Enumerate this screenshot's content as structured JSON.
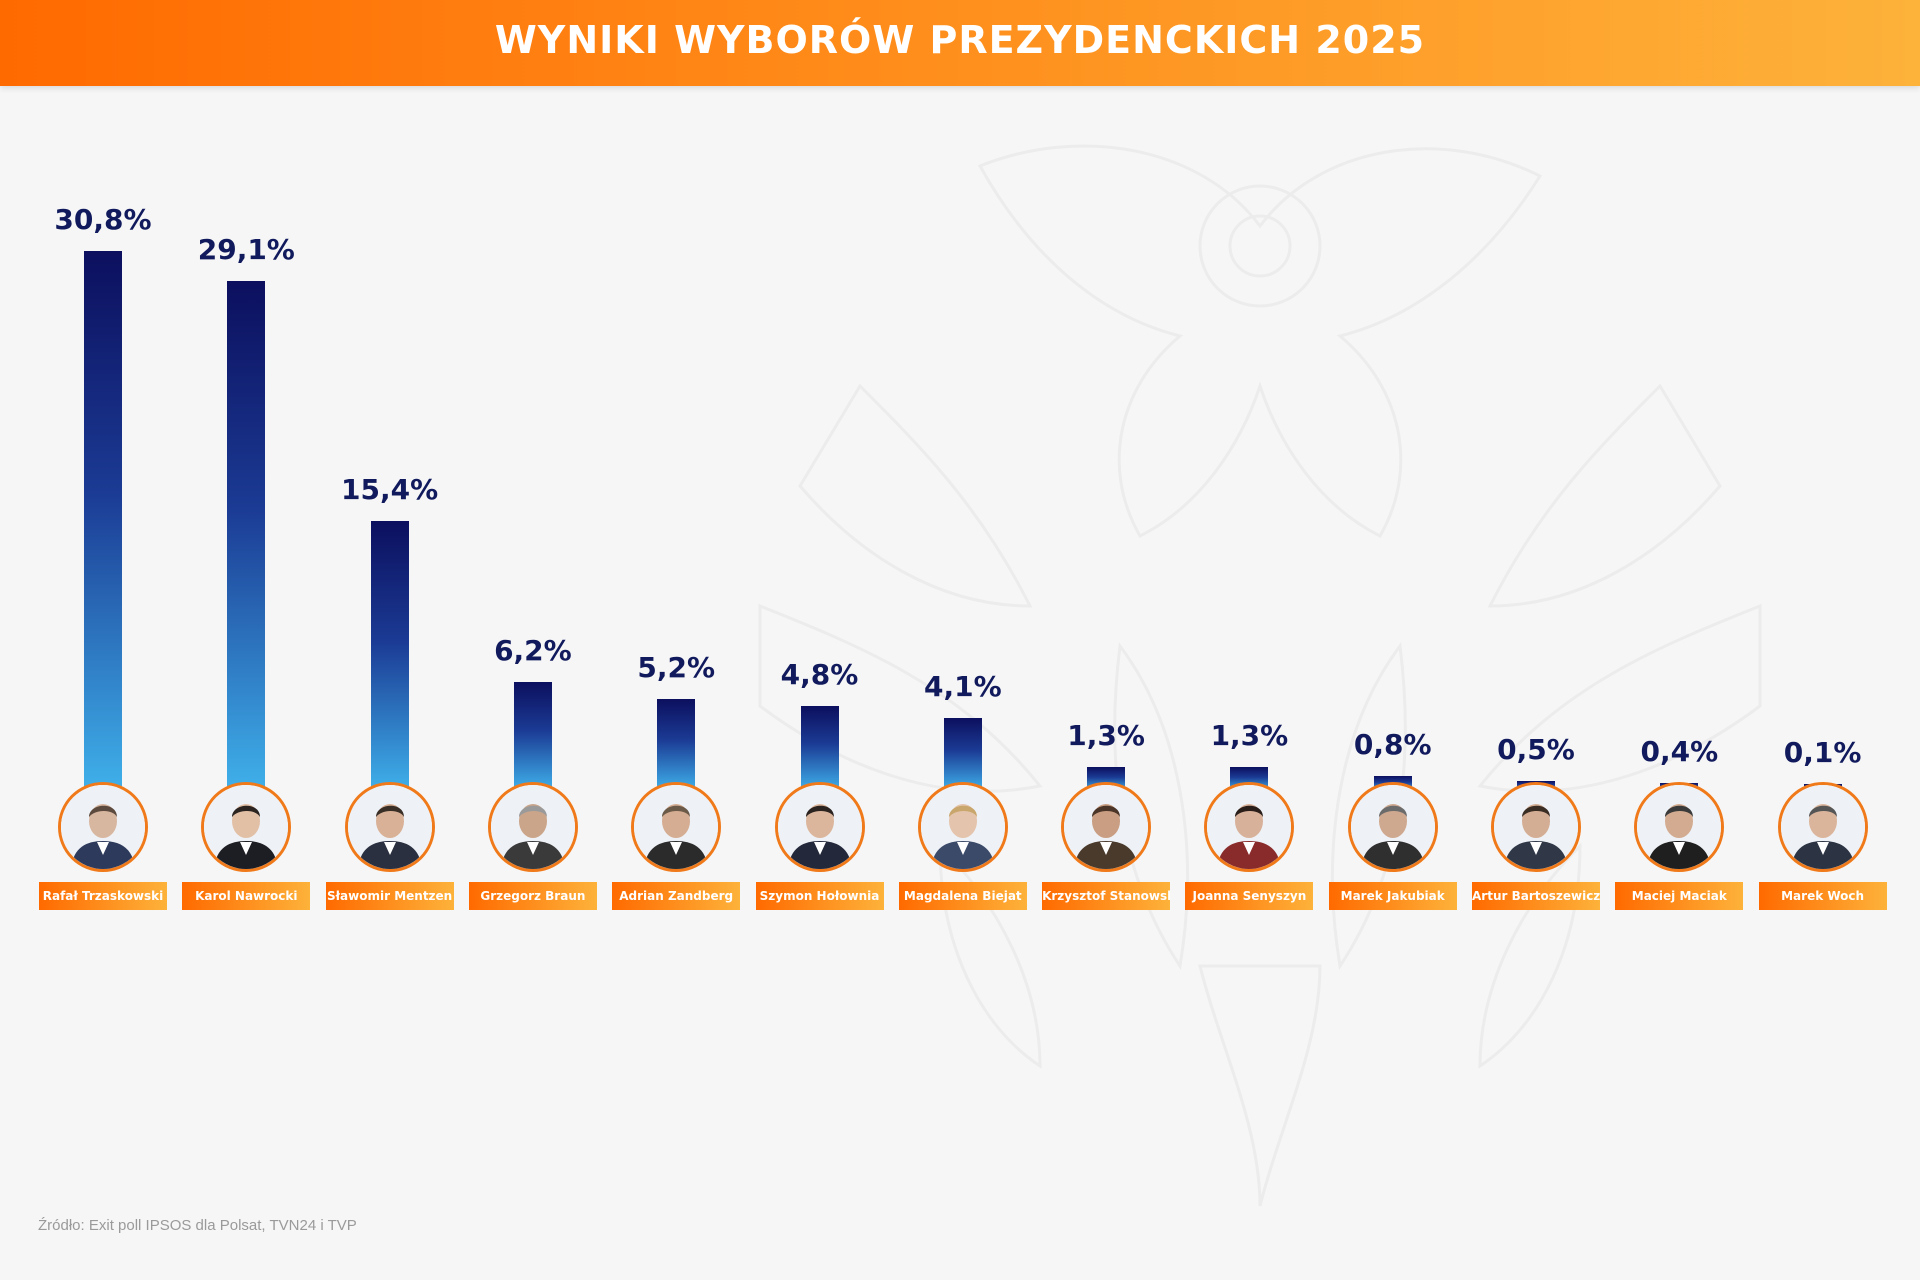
{
  "header": {
    "title": "WYNIKI WYBORÓW PREZYDENCKICH 2025"
  },
  "colors": {
    "header_start": "#ff6a00",
    "header_end": "#fdb23a",
    "bar_top": "#0c0f5e",
    "bar_bottom": "#3fb0ea",
    "value_text": "#101a5c",
    "avatar_border": "#f07a1a"
  },
  "chart_data": {
    "type": "bar",
    "title": "WYNIKI WYBORÓW PREZYDENCKICH 2025",
    "ylim": [
      0,
      32
    ],
    "categories": [
      "Rafał Trzaskowski",
      "Karol Nawrocki",
      "Sławomir Mentzen",
      "Grzegorz Braun",
      "Adrian Zandberg",
      "Szymon Hołownia",
      "Magdalena Biejat",
      "Krzysztof Stanowski",
      "Joanna Senyszyn",
      "Marek Jakubiak",
      "Artur Bartoszewicz",
      "Maciej Maciak",
      "Marek Woch"
    ],
    "values": [
      30.8,
      29.1,
      15.4,
      6.2,
      5.2,
      4.8,
      4.1,
      1.3,
      1.3,
      0.8,
      0.5,
      0.4,
      0.1
    ],
    "value_labels": [
      "30,8%",
      "29,1%",
      "15,4%",
      "6,2%",
      "5,2%",
      "4,8%",
      "4,1%",
      "1,3%",
      "1,3%",
      "0,8%",
      "0,5%",
      "0,4%",
      "0,1%"
    ],
    "grid": false
  },
  "footer": {
    "source": "Źródło: Exit poll IPSOS dla Polsat, TVN24 i TVP"
  }
}
